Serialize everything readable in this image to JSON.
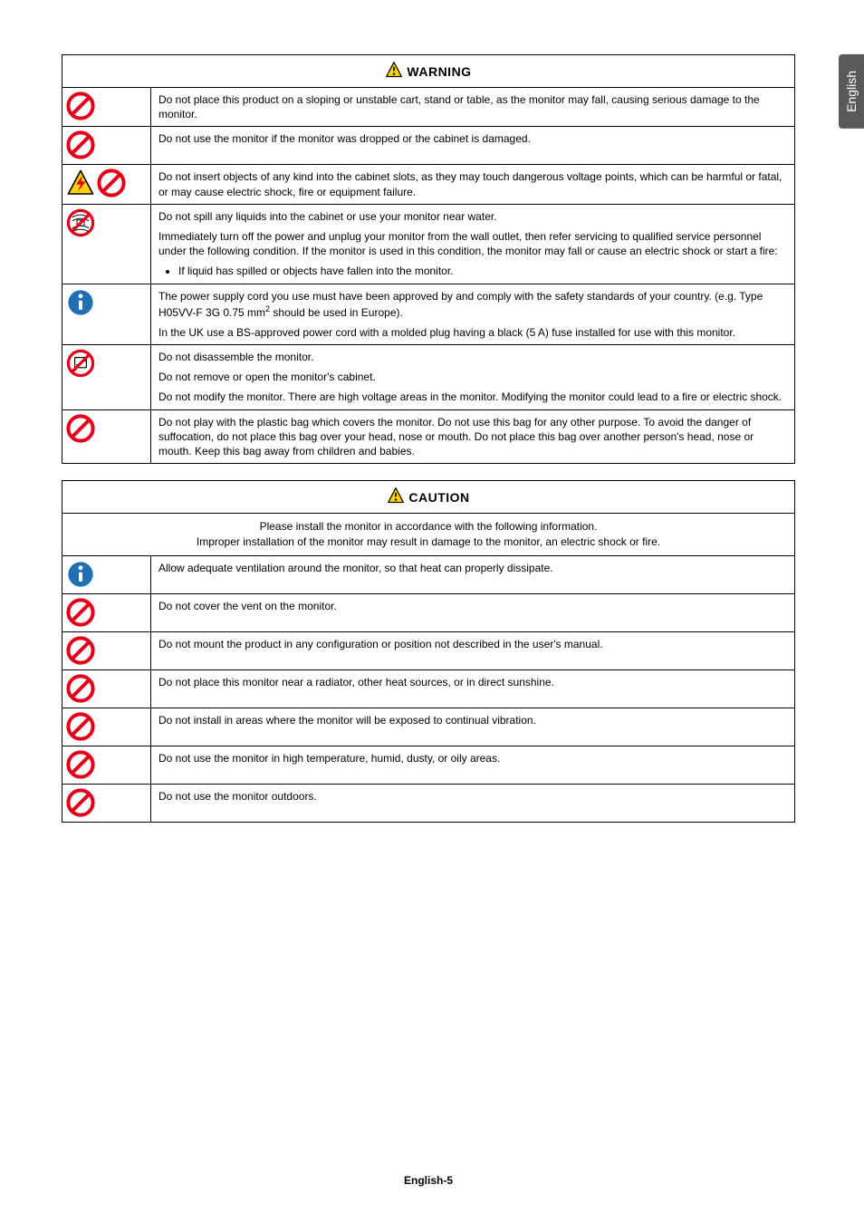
{
  "lang_tab": "English",
  "footer": "English-5",
  "colors": {
    "red": "#e3001b",
    "yellow": "#ffd400",
    "blue": "#1f6fb5",
    "black": "#000000",
    "white": "#ffffff",
    "tab_bg": "#595959"
  },
  "warning": {
    "title": "WARNING",
    "rows": [
      {
        "icons": [
          "prohibit"
        ],
        "paras": [
          "Do not place this product on a sloping or unstable cart, stand or table, as the monitor may fall, causing serious damage to the monitor."
        ]
      },
      {
        "icons": [
          "prohibit"
        ],
        "paras": [
          "Do not use the monitor if the monitor was dropped or the cabinet is damaged."
        ]
      },
      {
        "icons": [
          "shock",
          "prohibit"
        ],
        "paras": [
          "Do not insert objects of any kind into the cabinet slots, as they may touch dangerous voltage points, which can be harmful or fatal, or may cause electric shock, fire or equipment failure."
        ]
      },
      {
        "icons": [
          "nowet"
        ],
        "paras": [
          "Do not spill any liquids into the cabinet or use your monitor near water.",
          "Immediately turn off the power and unplug your monitor from the wall outlet, then refer servicing to qualified service personnel under the following condition. If the monitor is used in this condition, the monitor may fall or cause an electric shock or start a fire:"
        ],
        "bullets": [
          "If liquid has spilled or objects have fallen into the monitor."
        ]
      },
      {
        "icons": [
          "notice"
        ],
        "paras": [
          "The power supply cord you use must have been approved by and comply with the safety standards of your country. (e.g. Type H05VV-F 3G 0.75 mm<sup>2</sup> should be used in Europe).",
          "In the UK use a BS-approved power cord with a molded plug having a black (5 A) fuse installed for use with this monitor."
        ]
      },
      {
        "icons": [
          "nodisassemble"
        ],
        "paras": [
          "Do not disassemble the monitor.",
          "Do not remove or open the monitor's cabinet.",
          "Do not modify the monitor. There are high voltage areas in the monitor. Modifying the monitor could lead to a fire or electric shock."
        ]
      },
      {
        "icons": [
          "prohibit"
        ],
        "paras": [
          "Do not play with the plastic bag which covers the monitor. Do not use this bag for any other purpose. To avoid the danger of suffocation, do not place this bag over your head, nose or mouth. Do not place this bag over another person's head, nose or mouth. Keep this bag away from children and babies."
        ]
      }
    ]
  },
  "caution": {
    "title": "CAUTION",
    "subhead": "Please install the monitor in accordance with the following information.\nImproper installation of the monitor may result in damage to the monitor, an electric shock or fire.",
    "rows": [
      {
        "icons": [
          "notice"
        ],
        "paras": [
          "Allow adequate ventilation around the monitor, so that heat can properly dissipate."
        ]
      },
      {
        "icons": [
          "prohibit"
        ],
        "paras": [
          "Do not cover the vent on the monitor."
        ]
      },
      {
        "icons": [
          "prohibit"
        ],
        "paras": [
          "Do not mount the product in any configuration or position not described in the user's manual."
        ]
      },
      {
        "icons": [
          "prohibit"
        ],
        "paras": [
          "Do not place this monitor near a radiator, other heat sources, or in direct sunshine."
        ]
      },
      {
        "icons": [
          "prohibit"
        ],
        "paras": [
          "Do not install in areas where the monitor will be exposed to continual vibration."
        ]
      },
      {
        "icons": [
          "prohibit"
        ],
        "paras": [
          "Do not use the monitor in high temperature, humid, dusty, or oily areas."
        ]
      },
      {
        "icons": [
          "prohibit"
        ],
        "paras": [
          "Do not use the monitor outdoors."
        ]
      }
    ]
  },
  "icon_size": 32,
  "header_icon_size": 20
}
